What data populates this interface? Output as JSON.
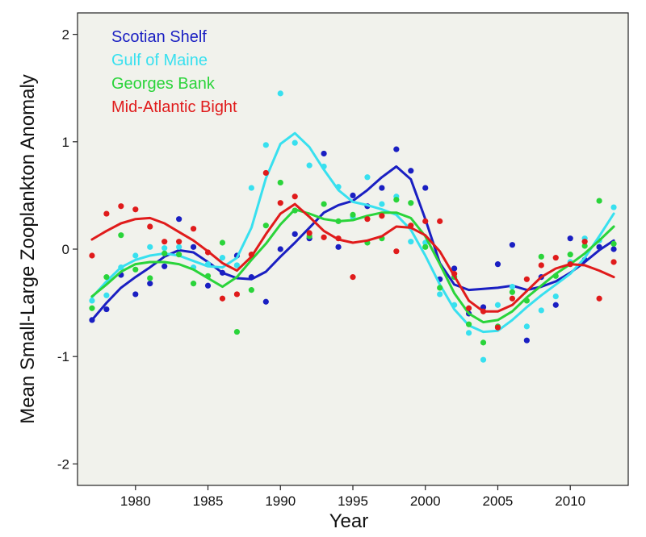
{
  "chart_data": {
    "type": "scatter",
    "title": "",
    "xlabel": "Year",
    "ylabel": "Mean Small-Large Zooplankton Anomaly",
    "xlim": [
      1976,
      2014
    ],
    "ylim": [
      -2.2,
      2.2
    ],
    "x_ticks": [
      1980,
      1985,
      1990,
      1995,
      2000,
      2005,
      2010
    ],
    "y_ticks": [
      -2,
      -1,
      0,
      1,
      2
    ],
    "legend_position": "top-left",
    "grid": false,
    "background": "#f1f2ec",
    "series": [
      {
        "name": "Scotian Shelf",
        "color": "#1a1fc2",
        "points": [
          [
            1977,
            -0.66
          ],
          [
            1978,
            -0.56
          ],
          [
            1979,
            -0.24
          ],
          [
            1980,
            -0.42
          ],
          [
            1981,
            -0.32
          ],
          [
            1982,
            -0.16
          ],
          [
            1983,
            0.28
          ],
          [
            1984,
            0.02
          ],
          [
            1985,
            -0.34
          ],
          [
            1986,
            -0.22
          ],
          [
            1987,
            -0.06
          ],
          [
            1988,
            -0.26
          ],
          [
            1989,
            -0.49
          ],
          [
            1990,
            0.0
          ],
          [
            1991,
            0.14
          ],
          [
            1992,
            0.1
          ],
          [
            1993,
            0.89
          ],
          [
            1994,
            0.02
          ],
          [
            1995,
            0.5
          ],
          [
            1996,
            0.4
          ],
          [
            1997,
            0.57
          ],
          [
            1998,
            0.93
          ],
          [
            1999,
            0.73
          ],
          [
            2000,
            0.57
          ],
          [
            2001,
            -0.28
          ],
          [
            2002,
            -0.18
          ],
          [
            2003,
            -0.6
          ],
          [
            2004,
            -0.54
          ],
          [
            2005,
            -0.14
          ],
          [
            2006,
            0.04
          ],
          [
            2007,
            -0.85
          ],
          [
            2008,
            -0.26
          ],
          [
            2009,
            -0.52
          ],
          [
            2010,
            0.1
          ],
          [
            2011,
            -0.1
          ],
          [
            2012,
            0.02
          ],
          [
            2013,
            0.0
          ]
        ],
        "smooth": [
          [
            1977,
            -0.66
          ],
          [
            1978,
            -0.5
          ],
          [
            1979,
            -0.36
          ],
          [
            1980,
            -0.26
          ],
          [
            1981,
            -0.17
          ],
          [
            1982,
            -0.07
          ],
          [
            1983,
            -0.01
          ],
          [
            1984,
            -0.03
          ],
          [
            1985,
            -0.12
          ],
          [
            1986,
            -0.22
          ],
          [
            1987,
            -0.27
          ],
          [
            1988,
            -0.28
          ],
          [
            1989,
            -0.21
          ],
          [
            1990,
            -0.07
          ],
          [
            1991,
            0.06
          ],
          [
            1992,
            0.2
          ],
          [
            1993,
            0.34
          ],
          [
            1994,
            0.41
          ],
          [
            1995,
            0.45
          ],
          [
            1996,
            0.55
          ],
          [
            1997,
            0.67
          ],
          [
            1998,
            0.77
          ],
          [
            1999,
            0.65
          ],
          [
            2000,
            0.28
          ],
          [
            2001,
            -0.13
          ],
          [
            2002,
            -0.33
          ],
          [
            2003,
            -0.38
          ],
          [
            2004,
            -0.37
          ],
          [
            2005,
            -0.36
          ],
          [
            2006,
            -0.34
          ],
          [
            2007,
            -0.38
          ],
          [
            2008,
            -0.35
          ],
          [
            2009,
            -0.3
          ],
          [
            2010,
            -0.22
          ],
          [
            2011,
            -0.12
          ],
          [
            2012,
            -0.01
          ],
          [
            2013,
            0.08
          ]
        ]
      },
      {
        "name": "Gulf of Maine",
        "color": "#38e0ef",
        "points": [
          [
            1977,
            -0.48
          ],
          [
            1978,
            -0.43
          ],
          [
            1979,
            -0.17
          ],
          [
            1980,
            -0.06
          ],
          [
            1981,
            0.02
          ],
          [
            1982,
            0.01
          ],
          [
            1983,
            0.02
          ],
          [
            1984,
            -0.17
          ],
          [
            1985,
            -0.14
          ],
          [
            1986,
            -0.08
          ],
          [
            1987,
            -0.15
          ],
          [
            1988,
            0.57
          ],
          [
            1989,
            0.97
          ],
          [
            1990,
            1.45
          ],
          [
            1991,
            0.99
          ],
          [
            1992,
            0.78
          ],
          [
            1993,
            0.77
          ],
          [
            1994,
            0.58
          ],
          [
            1995,
            0.3
          ],
          [
            1996,
            0.67
          ],
          [
            1997,
            0.42
          ],
          [
            1998,
            0.49
          ],
          [
            1999,
            0.07
          ],
          [
            2000,
            0.06
          ],
          [
            2001,
            -0.42
          ],
          [
            2002,
            -0.52
          ],
          [
            2003,
            -0.78
          ],
          [
            2004,
            -1.03
          ],
          [
            2005,
            -0.52
          ],
          [
            2006,
            -0.35
          ],
          [
            2007,
            -0.72
          ],
          [
            2008,
            -0.57
          ],
          [
            2009,
            -0.44
          ],
          [
            2010,
            -0.12
          ],
          [
            2011,
            0.1
          ],
          [
            2012,
            0.08
          ],
          [
            2013,
            0.39
          ]
        ],
        "smooth": [
          [
            1977,
            -0.45
          ],
          [
            1978,
            -0.3
          ],
          [
            1979,
            -0.17
          ],
          [
            1980,
            -0.1
          ],
          [
            1981,
            -0.06
          ],
          [
            1982,
            -0.04
          ],
          [
            1983,
            -0.06
          ],
          [
            1984,
            -0.11
          ],
          [
            1985,
            -0.16
          ],
          [
            1986,
            -0.17
          ],
          [
            1987,
            -0.08
          ],
          [
            1988,
            0.2
          ],
          [
            1989,
            0.66
          ],
          [
            1990,
            0.98
          ],
          [
            1991,
            1.08
          ],
          [
            1992,
            0.95
          ],
          [
            1993,
            0.74
          ],
          [
            1994,
            0.55
          ],
          [
            1995,
            0.44
          ],
          [
            1996,
            0.41
          ],
          [
            1997,
            0.37
          ],
          [
            1998,
            0.32
          ],
          [
            1999,
            0.18
          ],
          [
            2000,
            -0.06
          ],
          [
            2001,
            -0.33
          ],
          [
            2002,
            -0.56
          ],
          [
            2003,
            -0.71
          ],
          [
            2004,
            -0.77
          ],
          [
            2005,
            -0.76
          ],
          [
            2006,
            -0.66
          ],
          [
            2007,
            -0.54
          ],
          [
            2008,
            -0.43
          ],
          [
            2009,
            -0.33
          ],
          [
            2010,
            -0.23
          ],
          [
            2011,
            -0.08
          ],
          [
            2012,
            0.12
          ],
          [
            2013,
            0.33
          ]
        ]
      },
      {
        "name": "Georges Bank",
        "color": "#2ad43a",
        "points": [
          [
            1977,
            -0.55
          ],
          [
            1978,
            -0.26
          ],
          [
            1979,
            0.13
          ],
          [
            1980,
            -0.19
          ],
          [
            1981,
            -0.27
          ],
          [
            1982,
            -0.04
          ],
          [
            1983,
            -0.05
          ],
          [
            1984,
            -0.32
          ],
          [
            1985,
            -0.25
          ],
          [
            1986,
            0.06
          ],
          [
            1987,
            -0.77
          ],
          [
            1988,
            -0.38
          ],
          [
            1989,
            0.22
          ],
          [
            1990,
            0.62
          ],
          [
            1991,
            0.36
          ],
          [
            1992,
            0.12
          ],
          [
            1993,
            0.42
          ],
          [
            1994,
            0.26
          ],
          [
            1995,
            0.32
          ],
          [
            1996,
            0.06
          ],
          [
            1997,
            0.1
          ],
          [
            1998,
            0.46
          ],
          [
            1999,
            0.43
          ],
          [
            2000,
            0.02
          ],
          [
            2001,
            -0.36
          ],
          [
            2002,
            -0.26
          ],
          [
            2003,
            -0.7
          ],
          [
            2004,
            -0.87
          ],
          [
            2005,
            -0.72
          ],
          [
            2006,
            -0.4
          ],
          [
            2007,
            -0.48
          ],
          [
            2008,
            -0.07
          ],
          [
            2009,
            -0.25
          ],
          [
            2010,
            -0.05
          ],
          [
            2011,
            0.03
          ],
          [
            2012,
            0.45
          ],
          [
            2013,
            0.05
          ]
        ],
        "smooth": [
          [
            1977,
            -0.44
          ],
          [
            1978,
            -0.33
          ],
          [
            1979,
            -0.21
          ],
          [
            1980,
            -0.14
          ],
          [
            1981,
            -0.12
          ],
          [
            1982,
            -0.12
          ],
          [
            1983,
            -0.14
          ],
          [
            1984,
            -0.19
          ],
          [
            1985,
            -0.27
          ],
          [
            1986,
            -0.35
          ],
          [
            1987,
            -0.26
          ],
          [
            1988,
            -0.1
          ],
          [
            1989,
            0.05
          ],
          [
            1990,
            0.23
          ],
          [
            1991,
            0.37
          ],
          [
            1992,
            0.33
          ],
          [
            1993,
            0.28
          ],
          [
            1994,
            0.26
          ],
          [
            1995,
            0.27
          ],
          [
            1996,
            0.31
          ],
          [
            1997,
            0.34
          ],
          [
            1998,
            0.34
          ],
          [
            1999,
            0.29
          ],
          [
            2000,
            0.12
          ],
          [
            2001,
            -0.14
          ],
          [
            2002,
            -0.41
          ],
          [
            2003,
            -0.6
          ],
          [
            2004,
            -0.68
          ],
          [
            2005,
            -0.66
          ],
          [
            2006,
            -0.58
          ],
          [
            2007,
            -0.45
          ],
          [
            2008,
            -0.34
          ],
          [
            2009,
            -0.23
          ],
          [
            2010,
            -0.14
          ],
          [
            2011,
            -0.04
          ],
          [
            2012,
            0.08
          ],
          [
            2013,
            0.21
          ]
        ]
      },
      {
        "name": "Mid-Atlantic Bight",
        "color": "#e01b1b",
        "points": [
          [
            1977,
            -0.06
          ],
          [
            1978,
            0.33
          ],
          [
            1979,
            0.4
          ],
          [
            1980,
            0.37
          ],
          [
            1981,
            0.21
          ],
          [
            1982,
            0.07
          ],
          [
            1983,
            0.07
          ],
          [
            1984,
            0.19
          ],
          [
            1985,
            -0.03
          ],
          [
            1986,
            -0.46
          ],
          [
            1987,
            -0.42
          ],
          [
            1988,
            -0.05
          ],
          [
            1989,
            0.71
          ],
          [
            1990,
            0.43
          ],
          [
            1991,
            0.49
          ],
          [
            1992,
            0.15
          ],
          [
            1993,
            0.11
          ],
          [
            1994,
            0.1
          ],
          [
            1995,
            -0.26
          ],
          [
            1996,
            0.28
          ],
          [
            1997,
            0.31
          ],
          [
            1998,
            -0.02
          ],
          [
            1999,
            0.22
          ],
          [
            2000,
            0.26
          ],
          [
            2001,
            0.26
          ],
          [
            2002,
            -0.23
          ],
          [
            2003,
            -0.55
          ],
          [
            2004,
            -0.58
          ],
          [
            2005,
            -0.73
          ],
          [
            2006,
            -0.46
          ],
          [
            2007,
            -0.28
          ],
          [
            2008,
            -0.15
          ],
          [
            2009,
            -0.08
          ],
          [
            2010,
            -0.14
          ],
          [
            2011,
            0.07
          ],
          [
            2012,
            -0.46
          ],
          [
            2013,
            -0.12
          ]
        ],
        "smooth": [
          [
            1977,
            0.09
          ],
          [
            1978,
            0.17
          ],
          [
            1979,
            0.24
          ],
          [
            1980,
            0.28
          ],
          [
            1981,
            0.29
          ],
          [
            1982,
            0.24
          ],
          [
            1983,
            0.16
          ],
          [
            1984,
            0.08
          ],
          [
            1985,
            -0.02
          ],
          [
            1986,
            -0.13
          ],
          [
            1987,
            -0.2
          ],
          [
            1988,
            -0.07
          ],
          [
            1989,
            0.14
          ],
          [
            1990,
            0.33
          ],
          [
            1991,
            0.42
          ],
          [
            1992,
            0.3
          ],
          [
            1993,
            0.17
          ],
          [
            1994,
            0.09
          ],
          [
            1995,
            0.06
          ],
          [
            1996,
            0.08
          ],
          [
            1997,
            0.12
          ],
          [
            1998,
            0.21
          ],
          [
            1999,
            0.2
          ],
          [
            2000,
            0.13
          ],
          [
            2001,
            -0.02
          ],
          [
            2002,
            -0.25
          ],
          [
            2003,
            -0.48
          ],
          [
            2004,
            -0.58
          ],
          [
            2005,
            -0.58
          ],
          [
            2006,
            -0.52
          ],
          [
            2007,
            -0.39
          ],
          [
            2008,
            -0.26
          ],
          [
            2009,
            -0.18
          ],
          [
            2010,
            -0.14
          ],
          [
            2011,
            -0.15
          ],
          [
            2012,
            -0.2
          ],
          [
            2013,
            -0.26
          ]
        ]
      }
    ]
  }
}
